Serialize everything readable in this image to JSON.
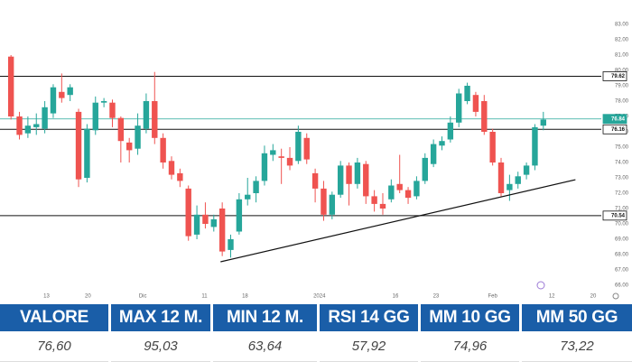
{
  "chart_data": {
    "type": "candlestick",
    "x": [
      0,
      1,
      2,
      3,
      4,
      5,
      6,
      7,
      8,
      9,
      10,
      11,
      12,
      13,
      14,
      15,
      16,
      17,
      18,
      19,
      20,
      21,
      22,
      23,
      24,
      25,
      26,
      27,
      28,
      29,
      30,
      31,
      32,
      33,
      34,
      35,
      36,
      37,
      38,
      39,
      40,
      41,
      42,
      43,
      44,
      45,
      46,
      47,
      48,
      49,
      50,
      51,
      52,
      53,
      54,
      55,
      56,
      57,
      58,
      59,
      60,
      61,
      62,
      63
    ],
    "open": [
      80.9,
      77.0,
      75.9,
      76.3,
      76.2,
      77.2,
      78.6,
      78.4,
      77.3,
      73.0,
      76.1,
      77.9,
      77.9,
      76.9,
      75.3,
      74.9,
      76.2,
      78.0,
      75.6,
      74.1,
      73.3,
      72.3,
      69.3,
      70.6,
      69.8,
      71.0,
      68.3,
      69.5,
      71.6,
      72.0,
      72.8,
      74.5,
      74.4,
      74.3,
      74.1,
      75.6,
      73.3,
      72.3,
      70.6,
      71.9,
      73.8,
      72.6,
      73.9,
      71.8,
      71.3,
      71.6,
      72.6,
      72.2,
      71.8,
      72.8,
      73.9,
      75.1,
      75.5,
      76.6,
      78.0,
      78.4,
      78.0,
      76.0,
      74.0,
      72.2,
      72.6,
      73.2,
      73.8,
      76.4
    ],
    "high": [
      81.0,
      77.3,
      77.0,
      77.2,
      78.0,
      79.1,
      79.8,
      79.1,
      77.5,
      76.5,
      78.3,
      78.2,
      78.1,
      77.0,
      75.6,
      77.2,
      78.5,
      79.9,
      75.9,
      74.4,
      73.6,
      72.5,
      71.2,
      71.4,
      70.6,
      71.4,
      69.3,
      72.0,
      73.0,
      73.1,
      75.1,
      75.2,
      74.9,
      75.0,
      76.4,
      75.9,
      73.6,
      72.8,
      72.1,
      74.1,
      74.0,
      74.3,
      74.1,
      72.2,
      72.0,
      72.9,
      74.5,
      72.4,
      73.1,
      74.6,
      75.5,
      75.7,
      77.0,
      78.8,
      79.2,
      78.6,
      78.4,
      76.2,
      74.3,
      73.2,
      73.4,
      74.0,
      76.5,
      77.3
    ],
    "low": [
      76.8,
      75.5,
      75.6,
      75.8,
      75.9,
      76.9,
      77.9,
      78.0,
      72.4,
      72.7,
      75.8,
      77.6,
      76.3,
      74.0,
      74.0,
      74.5,
      75.9,
      75.2,
      73.6,
      72.9,
      72.4,
      68.9,
      69.0,
      69.7,
      69.5,
      67.9,
      67.8,
      69.3,
      71.2,
      71.4,
      72.5,
      74.1,
      72.6,
      73.5,
      73.9,
      73.9,
      71.4,
      70.2,
      70.3,
      71.7,
      71.2,
      72.3,
      71.3,
      70.8,
      70.6,
      71.4,
      72.0,
      71.3,
      71.6,
      72.6,
      73.7,
      74.8,
      75.3,
      76.3,
      77.8,
      77.0,
      75.8,
      73.8,
      71.8,
      71.5,
      72.3,
      72.9,
      73.5,
      76.1
    ],
    "close": [
      77.0,
      75.8,
      76.4,
      76.5,
      77.6,
      78.9,
      78.2,
      78.9,
      72.9,
      76.2,
      77.9,
      78.0,
      76.9,
      75.4,
      74.8,
      76.4,
      78.0,
      75.6,
      74.0,
      73.2,
      72.8,
      69.2,
      70.6,
      70.0,
      70.3,
      68.2,
      69.0,
      71.6,
      71.9,
      72.8,
      74.6,
      74.8,
      74.3,
      73.8,
      76.0,
      74.2,
      72.3,
      70.6,
      71.9,
      73.8,
      72.6,
      74.0,
      71.8,
      71.3,
      71.0,
      72.5,
      72.2,
      71.7,
      72.8,
      74.3,
      75.2,
      75.4,
      76.6,
      78.5,
      79.0,
      77.3,
      76.0,
      74.0,
      72.0,
      72.6,
      73.1,
      73.8,
      76.3,
      76.8
    ],
    "up_color": "#26a69a",
    "down_color": "#ef5350",
    "xlim": [
      -1.3,
      70.5
    ],
    "xticks": [
      {
        "value": 4.2,
        "label": "13"
      },
      {
        "value": 9.1,
        "label": "20"
      },
      {
        "value": 15.6,
        "label": "Dic"
      },
      {
        "value": 22.9,
        "label": "11"
      },
      {
        "value": 27.7,
        "label": "18"
      },
      {
        "value": 36.5,
        "label": "2024"
      },
      {
        "value": 45.5,
        "label": "16"
      },
      {
        "value": 50.3,
        "label": "23"
      },
      {
        "value": 57,
        "label": "Feb"
      },
      {
        "value": 64,
        "label": "12"
      },
      {
        "value": 68.9,
        "label": "20"
      }
    ],
    "ylim": [
      66,
      83
    ],
    "yticks": [
      {
        "value": 66,
        "label": "66.00"
      },
      {
        "value": 67,
        "label": "67.00"
      },
      {
        "value": 68,
        "label": "68.00"
      },
      {
        "value": 69,
        "label": "69.00"
      },
      {
        "value": 70,
        "label": "70.00"
      },
      {
        "value": 71,
        "label": "71.00"
      },
      {
        "value": 72,
        "label": "72.00"
      },
      {
        "value": 73,
        "label": "73.00"
      },
      {
        "value": 74,
        "label": "74.00"
      },
      {
        "value": 75,
        "label": "75.00"
      },
      {
        "value": 76,
        "label": "76.00"
      },
      {
        "value": 77,
        "label": "77.00"
      },
      {
        "value": 78,
        "label": "78.00"
      },
      {
        "value": 79,
        "label": "79.00"
      },
      {
        "value": 80,
        "label": "80.00"
      },
      {
        "value": 81,
        "label": "81.00"
      },
      {
        "value": 82,
        "label": "82.00"
      },
      {
        "value": 83,
        "label": "83.00"
      }
    ],
    "levels": [
      {
        "value": 79.62,
        "color": "#111111"
      },
      {
        "value": 76.84,
        "color": "#26a69a"
      },
      {
        "value": 76.16,
        "color": "#111111"
      },
      {
        "value": 70.54,
        "color": "#111111"
      }
    ],
    "trend_line": {
      "x": [
        24.8,
        66.8
      ],
      "y": [
        67.53,
        72.88
      ],
      "color": "#111111"
    }
  },
  "table": {
    "headers": [
      "VALORE",
      "MAX 12 M.",
      "MIN 12 M.",
      "RSI 14 GG",
      "MM 10 GG",
      "MM 50 GG"
    ],
    "values": [
      "76,60",
      "95,03",
      "63,64",
      "57,92",
      "74,96",
      "73,22"
    ]
  }
}
